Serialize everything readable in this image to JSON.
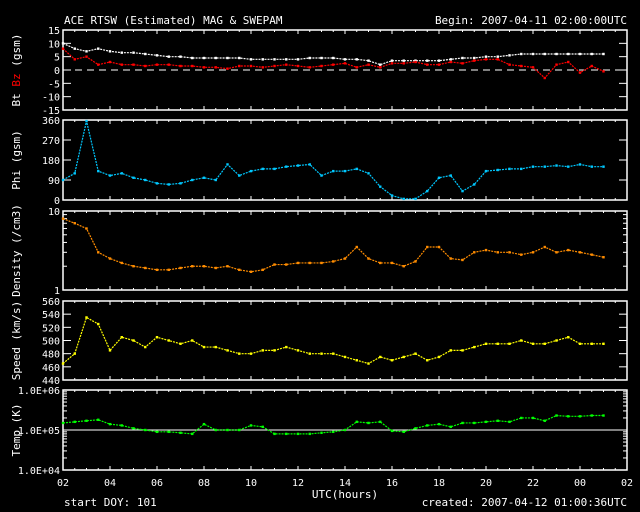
{
  "header": {
    "title": "ACE RTSW (Estimated) MAG & SWEPAM",
    "begin": "Begin: 2007-04-11 02:00:00UTC"
  },
  "footer": {
    "start_doy": "start DOY: 101",
    "created": "created: 2007-04-12 01:00:36UTC"
  },
  "colors": {
    "bt": "#ffffff",
    "bz": "#ff0000",
    "phi": "#00c8ff",
    "density": "#ff8c00",
    "speed": "#ffff00",
    "temp": "#00ff00",
    "axes": "#ffffff"
  },
  "chart_data": [
    {
      "type": "scatter",
      "id": "mag",
      "ylabel_parts": [
        "Bt",
        "Bz",
        "(gsm)"
      ],
      "ylim": [
        -15,
        15
      ],
      "yticks": [
        "15",
        "10",
        "5",
        "0",
        "-5",
        "-10",
        "-15"
      ],
      "ytick_values": [
        15,
        10,
        5,
        0,
        -5,
        -10,
        -15
      ],
      "reference_line": 0,
      "series": [
        {
          "name": "Bt",
          "values": [
            10,
            8,
            7,
            8,
            7,
            6.5,
            6.5,
            6,
            5.5,
            5,
            5,
            4.5,
            4.5,
            4.5,
            4.5,
            4.5,
            4,
            4,
            4,
            4,
            4,
            4.5,
            4.5,
            4.5,
            4,
            4,
            3.5,
            2,
            3.5,
            3.5,
            3.5,
            3.5,
            3.5,
            4,
            4.5,
            4.5,
            5,
            5,
            5.5,
            6,
            6,
            6,
            6,
            6,
            6,
            6,
            6
          ]
        },
        {
          "name": "Bz",
          "values": [
            8,
            4,
            5,
            2,
            3,
            2,
            2,
            1.5,
            2,
            2,
            1.5,
            1.5,
            1,
            1,
            0.5,
            1.5,
            1.5,
            1,
            1.5,
            2,
            1.5,
            1,
            1.5,
            2,
            2.5,
            1,
            2,
            1,
            2.5,
            2.5,
            3,
            2,
            2,
            3,
            2.5,
            3.5,
            4,
            4,
            2,
            1.5,
            1,
            -3,
            2,
            3,
            -1,
            1.5,
            -0.5
          ]
        }
      ]
    },
    {
      "type": "scatter",
      "id": "phi",
      "ylabel": "Phi (gsm)",
      "ylim": [
        0,
        360
      ],
      "yticks": [
        "360",
        "270",
        "180",
        "90",
        "0"
      ],
      "ytick_values": [
        360,
        270,
        180,
        90,
        0
      ],
      "series": [
        {
          "name": "Phi",
          "values": [
            90,
            120,
            355,
            130,
            110,
            120,
            100,
            90,
            75,
            70,
            75,
            90,
            100,
            90,
            160,
            110,
            130,
            140,
            140,
            150,
            155,
            160,
            110,
            130,
            130,
            140,
            120,
            60,
            20,
            5,
            5,
            40,
            100,
            110,
            40,
            70,
            130,
            135,
            140,
            140,
            150,
            150,
            155,
            150,
            160,
            150,
            150
          ]
        }
      ]
    },
    {
      "type": "scatter",
      "id": "density",
      "ylabel": "Density (/cm3)",
      "yscale": "log",
      "ylim": [
        1,
        10
      ],
      "yticks": [
        "10",
        "1"
      ],
      "ytick_values": [
        10,
        1
      ],
      "series": [
        {
          "name": "Density",
          "values": [
            8,
            7,
            6,
            3,
            2.5,
            2.2,
            2,
            1.9,
            1.8,
            1.8,
            1.9,
            2,
            2,
            1.9,
            2,
            1.8,
            1.7,
            1.8,
            2.1,
            2.1,
            2.2,
            2.2,
            2.2,
            2.3,
            2.5,
            3.5,
            2.5,
            2.2,
            2.2,
            2,
            2.3,
            3.5,
            3.5,
            2.5,
            2.4,
            3,
            3.2,
            3,
            3,
            2.8,
            3,
            3.5,
            3,
            3.2,
            3,
            2.8,
            2.6
          ]
        }
      ]
    },
    {
      "type": "scatter",
      "id": "speed",
      "ylabel": "Speed (km/s)",
      "ylim": [
        440,
        560
      ],
      "yticks": [
        "560",
        "540",
        "520",
        "500",
        "480",
        "460",
        "440"
      ],
      "ytick_values": [
        560,
        540,
        520,
        500,
        480,
        460,
        440
      ],
      "series": [
        {
          "name": "Speed",
          "values": [
            465,
            480,
            535,
            525,
            485,
            505,
            500,
            490,
            505,
            500,
            495,
            500,
            490,
            490,
            485,
            480,
            480,
            485,
            485,
            490,
            485,
            480,
            480,
            480,
            475,
            470,
            465,
            475,
            470,
            475,
            480,
            470,
            475,
            485,
            485,
            490,
            495,
            495,
            495,
            500,
            495,
            495,
            500,
            505,
            495,
            495,
            495
          ]
        }
      ]
    },
    {
      "type": "scatter",
      "id": "temp",
      "ylabel": "Temp (K)",
      "yscale": "log",
      "ylim": [
        10000,
        1000000
      ],
      "yticks": [
        "1.0E+06",
        "1.0E+05",
        "1.0E+04"
      ],
      "ytick_values": [
        1000000,
        100000,
        10000
      ],
      "reference_line": 100000,
      "series": [
        {
          "name": "Temp",
          "values": [
            150000,
            160000,
            170000,
            180000,
            140000,
            130000,
            110000,
            100000,
            90000,
            90000,
            85000,
            80000,
            140000,
            100000,
            100000,
            100000,
            130000,
            120000,
            80000,
            80000,
            80000,
            80000,
            85000,
            90000,
            100000,
            160000,
            150000,
            160000,
            95000,
            90000,
            110000,
            130000,
            140000,
            120000,
            150000,
            150000,
            160000,
            170000,
            160000,
            200000,
            200000,
            170000,
            230000,
            220000,
            220000,
            230000,
            230000
          ]
        }
      ]
    }
  ],
  "x_axis": {
    "label": "UTC(hours)",
    "xlim_hours": [
      2,
      26
    ],
    "sample_start_hour": 2,
    "sample_step_hours": 0.5,
    "ticks": [
      "02",
      "04",
      "06",
      "08",
      "10",
      "12",
      "14",
      "16",
      "18",
      "20",
      "22",
      "00",
      "02"
    ],
    "tick_hours": [
      2,
      4,
      6,
      8,
      10,
      12,
      14,
      16,
      18,
      20,
      22,
      24,
      26
    ]
  }
}
